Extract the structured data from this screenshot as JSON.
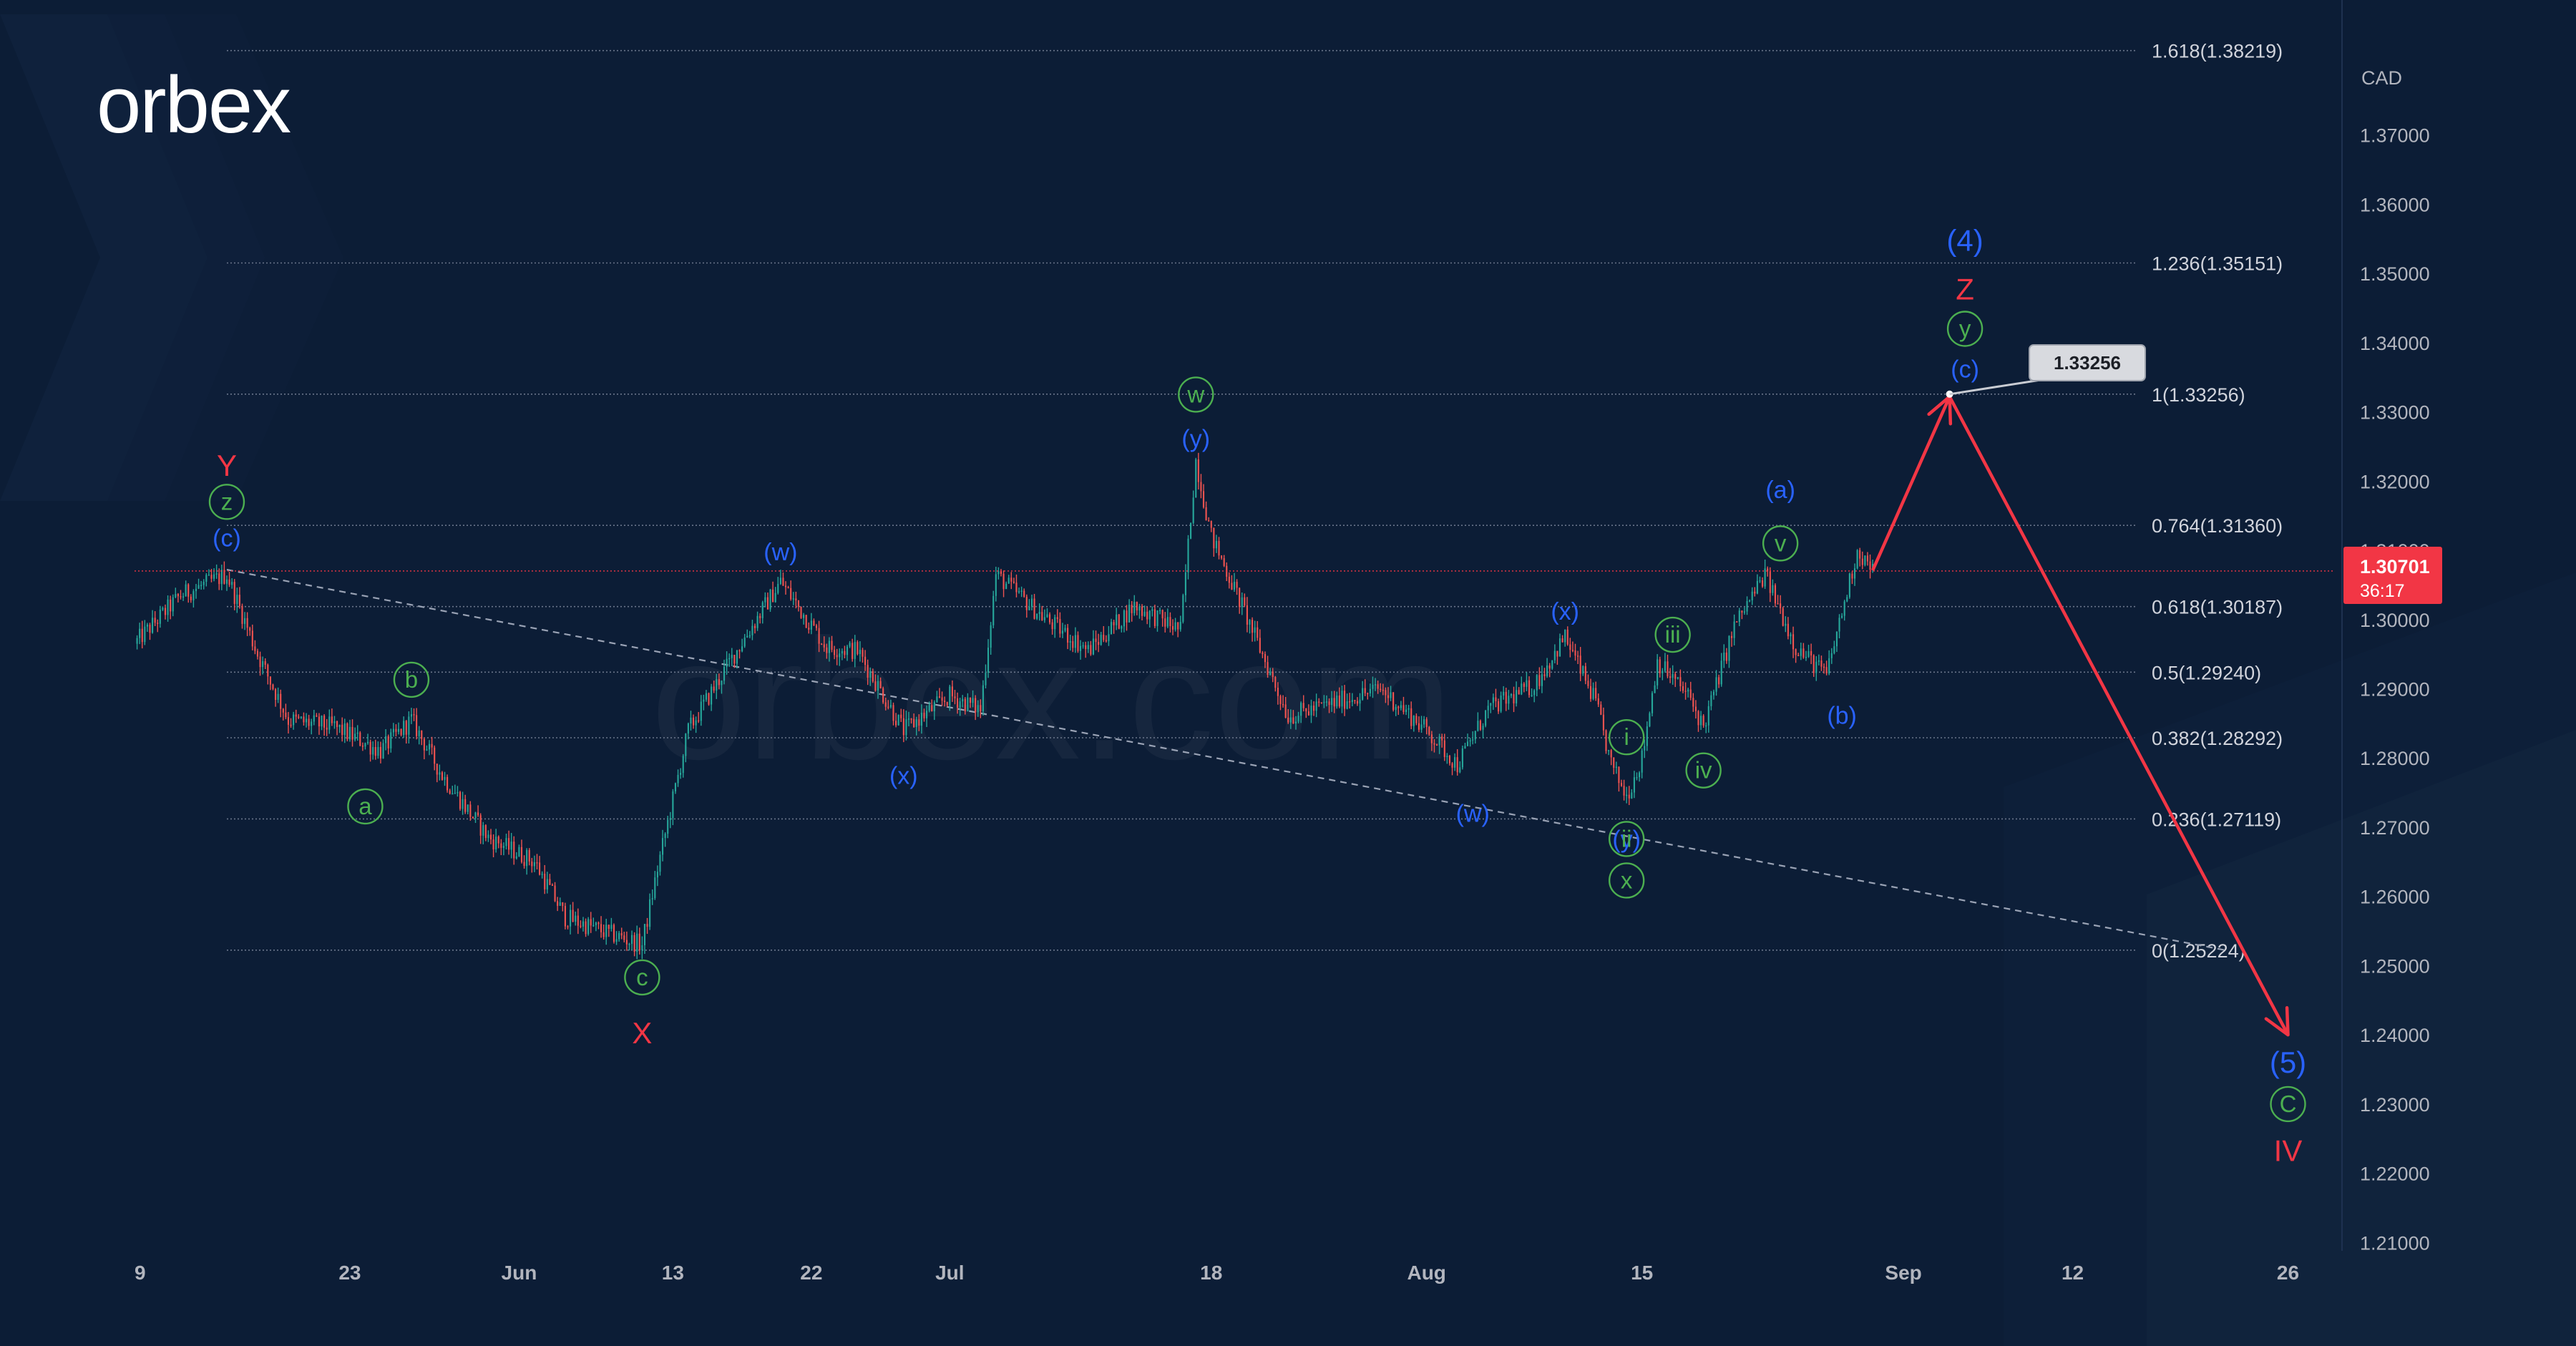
{
  "brand": {
    "logo_text": "orbex",
    "watermark_text": "orbex.com"
  },
  "chart_data": {
    "type": "candlestick",
    "currency_label": "CAD",
    "y_ticks": [
      "1.37000",
      "1.36000",
      "1.35000",
      "1.34000",
      "1.33000",
      "1.32000",
      "1.31000",
      "1.30000",
      "1.29000",
      "1.28000",
      "1.27000",
      "1.26000",
      "1.25000",
      "1.24000",
      "1.23000",
      "1.22000",
      "1.21000"
    ],
    "ylim": [
      1.2088,
      1.3895
    ],
    "x_ticks": [
      {
        "label": "9",
        "date": "2024-05-09"
      },
      {
        "label": "23",
        "date": "2024-05-23"
      },
      {
        "label": "Jun",
        "date": "2024-06-03"
      },
      {
        "label": "13",
        "date": "2024-06-13"
      },
      {
        "label": "22",
        "date": "2024-06-22"
      },
      {
        "label": "Jul",
        "date": "2024-07-01"
      },
      {
        "label": "18",
        "date": "2024-07-18"
      },
      {
        "label": "Aug",
        "date": "2024-08-01"
      },
      {
        "label": "15",
        "date": "2024-08-15"
      },
      {
        "label": "Sep",
        "date": "2024-09-01"
      },
      {
        "label": "12",
        "date": "2024-09-12"
      },
      {
        "label": "26",
        "date": "2024-09-26"
      }
    ],
    "xlim": [
      "2024-05-09",
      "2024-09-29"
    ],
    "current_price": {
      "label": "1.30701",
      "countdown": "36:17",
      "value": 1.30701
    },
    "fib_levels": [
      {
        "label": "1.618(1.38219)",
        "value": 1.38219
      },
      {
        "label": "1.236(1.35151)",
        "value": 1.35151
      },
      {
        "label": "1(1.33256)",
        "value": 1.33256
      },
      {
        "label": "0.764(1.31360)",
        "value": 1.3136
      },
      {
        "label": "0.618(1.30187)",
        "value": 1.30187
      },
      {
        "label": "0.5(1.29240)",
        "value": 1.2924
      },
      {
        "label": "0.382(1.28292)",
        "value": 1.28292
      },
      {
        "label": "0.236(1.27119)",
        "value": 1.27119
      },
      {
        "label": "0(1.25224)",
        "value": 1.25224
      }
    ],
    "target_callout": {
      "label": "1.33256",
      "value": 1.33256
    },
    "trendline": {
      "from": {
        "date": "2024-05-15",
        "price": 1.3072
      },
      "to": {
        "date": "2024-09-22",
        "price": 1.2522
      }
    },
    "projection": [
      {
        "date": "2024-08-30",
        "price": 1.3071
      },
      {
        "date": "2024-09-04",
        "price": 1.3322
      },
      {
        "date": "2024-09-26",
        "price": 1.24
      }
    ],
    "price_path": [
      {
        "date": "2024-05-09",
        "price": 1.2965
      },
      {
        "date": "2024-05-12",
        "price": 1.3035
      },
      {
        "date": "2024-05-15",
        "price": 1.3065
      },
      {
        "date": "2024-05-17",
        "price": 1.295
      },
      {
        "date": "2024-05-19",
        "price": 1.2855
      },
      {
        "date": "2024-05-22",
        "price": 1.2845
      },
      {
        "date": "2024-05-25",
        "price": 1.281
      },
      {
        "date": "2024-05-27",
        "price": 1.2855
      },
      {
        "date": "2024-05-29",
        "price": 1.2775
      },
      {
        "date": "2024-06-01",
        "price": 1.2685
      },
      {
        "date": "2024-06-04",
        "price": 1.265
      },
      {
        "date": "2024-06-06",
        "price": 1.257
      },
      {
        "date": "2024-06-09",
        "price": 1.2545
      },
      {
        "date": "2024-06-11",
        "price": 1.253
      },
      {
        "date": "2024-06-12",
        "price": 1.264
      },
      {
        "date": "2024-06-14",
        "price": 1.284
      },
      {
        "date": "2024-06-17",
        "price": 1.295
      },
      {
        "date": "2024-06-20",
        "price": 1.3055
      },
      {
        "date": "2024-06-23",
        "price": 1.296
      },
      {
        "date": "2024-06-25",
        "price": 1.2955
      },
      {
        "date": "2024-06-28",
        "price": 1.284
      },
      {
        "date": "2024-07-01",
        "price": 1.289
      },
      {
        "date": "2024-07-03",
        "price": 1.287
      },
      {
        "date": "2024-07-04",
        "price": 1.3065
      },
      {
        "date": "2024-07-07",
        "price": 1.3005
      },
      {
        "date": "2024-07-10",
        "price": 1.2955
      },
      {
        "date": "2024-07-13",
        "price": 1.302
      },
      {
        "date": "2024-07-16",
        "price": 1.2985
      },
      {
        "date": "2024-07-17",
        "price": 1.323
      },
      {
        "date": "2024-07-18",
        "price": 1.312
      },
      {
        "date": "2024-07-20",
        "price": 1.302
      },
      {
        "date": "2024-07-23",
        "price": 1.286
      },
      {
        "date": "2024-07-26",
        "price": 1.288
      },
      {
        "date": "2024-07-29",
        "price": 1.29
      },
      {
        "date": "2024-08-01",
        "price": 1.284
      },
      {
        "date": "2024-08-03",
        "price": 1.279
      },
      {
        "date": "2024-08-05",
        "price": 1.287
      },
      {
        "date": "2024-08-08",
        "price": 1.2905
      },
      {
        "date": "2024-08-10",
        "price": 1.2975
      },
      {
        "date": "2024-08-12",
        "price": 1.288
      },
      {
        "date": "2024-08-13",
        "price": 1.279
      },
      {
        "date": "2024-08-14",
        "price": 1.2745
      },
      {
        "date": "2024-08-15",
        "price": 1.28
      },
      {
        "date": "2024-08-16",
        "price": 1.294
      },
      {
        "date": "2024-08-18",
        "price": 1.289
      },
      {
        "date": "2024-08-19",
        "price": 1.2845
      },
      {
        "date": "2024-08-21",
        "price": 1.299
      },
      {
        "date": "2024-08-23",
        "price": 1.3065
      },
      {
        "date": "2024-08-25",
        "price": 1.296
      },
      {
        "date": "2024-08-27",
        "price": 1.292
      },
      {
        "date": "2024-08-28",
        "price": 1.301
      },
      {
        "date": "2024-08-29",
        "price": 1.31
      },
      {
        "date": "2024-08-30",
        "price": 1.3071
      }
    ],
    "wave_labels": [
      {
        "text": "Y",
        "date": "2024-05-15",
        "price": 1.322,
        "color": "#f23645",
        "shape": "none"
      },
      {
        "text": "z",
        "date": "2024-05-15",
        "price": 1.317,
        "color": "#4caf50",
        "shape": "circle"
      },
      {
        "text": "(c)",
        "date": "2024-05-15",
        "price": 1.3118,
        "color": "#2962ff",
        "shape": "none"
      },
      {
        "text": "b",
        "date": "2024-05-27",
        "price": 1.2913,
        "color": "#4caf50",
        "shape": "circle"
      },
      {
        "text": "a",
        "date": "2024-05-24",
        "price": 1.273,
        "color": "#4caf50",
        "shape": "circle"
      },
      {
        "text": "c",
        "date": "2024-06-11",
        "price": 1.2483,
        "color": "#4caf50",
        "shape": "circle"
      },
      {
        "text": "X",
        "date": "2024-06-11",
        "price": 1.24,
        "color": "#f23645",
        "shape": "none"
      },
      {
        "text": "(w)",
        "date": "2024-06-20",
        "price": 1.3098,
        "color": "#2962ff",
        "shape": "none"
      },
      {
        "text": "(x)",
        "date": "2024-06-28",
        "price": 1.2775,
        "color": "#2962ff",
        "shape": "none"
      },
      {
        "text": "w",
        "date": "2024-07-17",
        "price": 1.3325,
        "color": "#4caf50",
        "shape": "circle"
      },
      {
        "text": "(y)",
        "date": "2024-07-17",
        "price": 1.3262,
        "color": "#2962ff",
        "shape": "none"
      },
      {
        "text": "(w)",
        "date": "2024-08-04",
        "price": 1.272,
        "color": "#2962ff",
        "shape": "none"
      },
      {
        "text": "(x)",
        "date": "2024-08-10",
        "price": 1.3012,
        "color": "#2962ff",
        "shape": "none"
      },
      {
        "text": "i",
        "date": "2024-08-14",
        "price": 1.283,
        "color": "#4caf50",
        "shape": "circle"
      },
      {
        "text": "(y)",
        "date": "2024-08-14",
        "price": 1.2683,
        "color": "#2962ff",
        "shape": "none"
      },
      {
        "text": "ii",
        "date": "2024-08-14",
        "price": 1.2683,
        "color": "#4caf50",
        "shape": "circle"
      },
      {
        "text": "x",
        "date": "2024-08-14",
        "price": 1.2623,
        "color": "#4caf50",
        "shape": "circle"
      },
      {
        "text": "iii",
        "date": "2024-08-17",
        "price": 1.2978,
        "color": "#4caf50",
        "shape": "circle"
      },
      {
        "text": "iv",
        "date": "2024-08-19",
        "price": 1.2782,
        "color": "#4caf50",
        "shape": "circle"
      },
      {
        "text": "(a)",
        "date": "2024-08-24",
        "price": 1.3188,
        "color": "#2962ff",
        "shape": "none"
      },
      {
        "text": "v",
        "date": "2024-08-24",
        "price": 1.311,
        "color": "#4caf50",
        "shape": "circle"
      },
      {
        "text": "(b)",
        "date": "2024-08-28",
        "price": 1.2862,
        "color": "#2962ff",
        "shape": "none"
      },
      {
        "text": "(4)",
        "date": "2024-09-05",
        "price": 1.3545,
        "color": "#2962ff",
        "shape": "none"
      },
      {
        "text": "Z",
        "date": "2024-09-05",
        "price": 1.3475,
        "color": "#f23645",
        "shape": "none"
      },
      {
        "text": "y",
        "date": "2024-09-05",
        "price": 1.342,
        "color": "#4caf50",
        "shape": "circle"
      },
      {
        "text": "(c)",
        "date": "2024-09-05",
        "price": 1.3362,
        "color": "#2962ff",
        "shape": "none"
      },
      {
        "text": "(5)",
        "date": "2024-09-26",
        "price": 1.2358,
        "color": "#2962ff",
        "shape": "none"
      },
      {
        "text": "C",
        "date": "2024-09-26",
        "price": 1.23,
        "color": "#4caf50",
        "shape": "circle"
      },
      {
        "text": "IV",
        "date": "2024-09-26",
        "price": 1.223,
        "color": "#f23645",
        "shape": "none"
      }
    ]
  }
}
